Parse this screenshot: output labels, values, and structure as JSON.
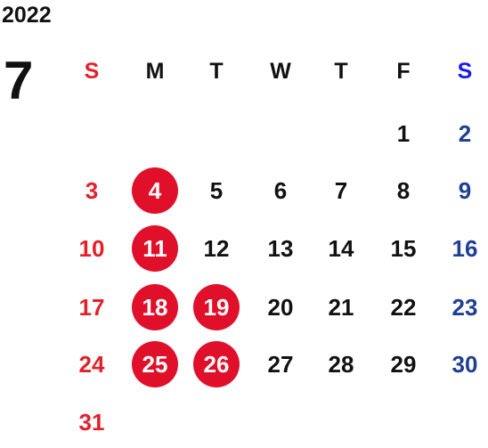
{
  "header": {
    "year": "2022",
    "month": "7"
  },
  "weekdays": [
    "S",
    "M",
    "T",
    "W",
    "T",
    "F",
    "S"
  ],
  "weeks": [
    [
      null,
      null,
      null,
      null,
      null,
      1,
      2
    ],
    [
      3,
      4,
      5,
      6,
      7,
      8,
      9
    ],
    [
      10,
      11,
      12,
      13,
      14,
      15,
      16
    ],
    [
      17,
      18,
      19,
      20,
      21,
      22,
      23
    ],
    [
      24,
      25,
      26,
      27,
      28,
      29,
      30
    ],
    [
      31,
      null,
      null,
      null,
      null,
      null,
      null
    ]
  ],
  "highlighted": [
    4,
    11,
    18,
    19,
    25,
    26
  ]
}
